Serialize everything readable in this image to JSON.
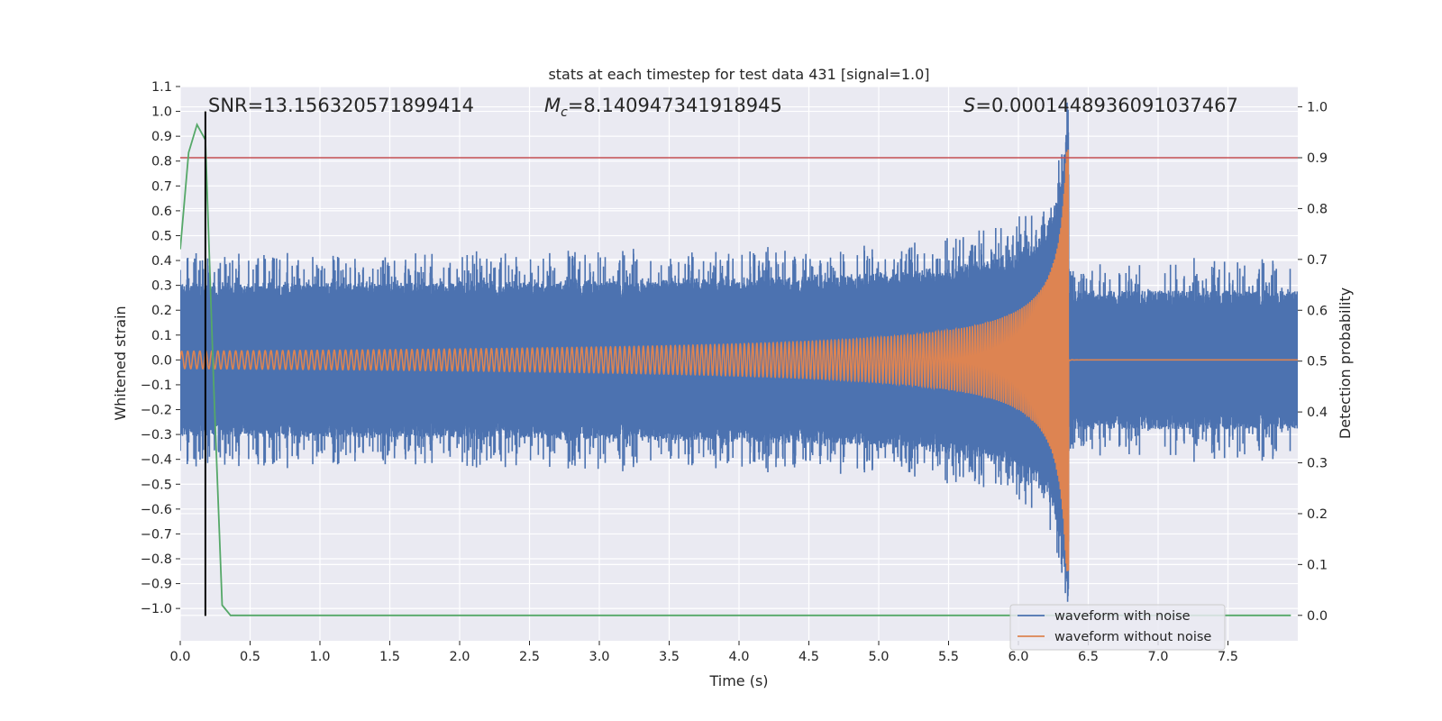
{
  "chart_data": {
    "type": "line",
    "title": "stats at each timestep for test data 431 [signal=1.0]",
    "xlabel": "Time (s)",
    "ylabel": "Whitened strain",
    "ylabel_right": "Detection probability",
    "xlim": [
      0.0,
      8.0
    ],
    "ylim": [
      -1.13,
      1.1
    ],
    "ylim_right": [
      -0.05,
      1.04
    ],
    "x_ticks": [
      0.0,
      0.5,
      1.0,
      1.5,
      2.0,
      2.5,
      3.0,
      3.5,
      4.0,
      4.5,
      5.0,
      5.5,
      6.0,
      6.5,
      7.0,
      7.5
    ],
    "x_tick_labels": [
      "0.0",
      "0.5",
      "1.0",
      "1.5",
      "2.0",
      "2.5",
      "3.0",
      "3.5",
      "4.0",
      "4.5",
      "5.0",
      "5.5",
      "6.0",
      "6.5",
      "7.0",
      "7.5"
    ],
    "y_ticks": [
      1.1,
      1.0,
      0.9,
      0.8,
      0.7,
      0.6,
      0.5,
      0.4,
      0.3,
      0.2,
      0.1,
      0.0,
      -0.1,
      -0.2,
      -0.3,
      -0.4,
      -0.5,
      -0.6,
      -0.7,
      -0.8,
      -0.9,
      -1.0
    ],
    "y_tick_labels": [
      "1.1",
      "1.0",
      "0.9",
      "0.8",
      "0.7",
      "0.6",
      "0.5",
      "0.4",
      "0.3",
      "0.2",
      "0.1",
      "0.0",
      "−0.1",
      "−0.2",
      "−0.3",
      "−0.4",
      "−0.5",
      "−0.6",
      "−0.7",
      "−0.8",
      "−0.9",
      "−1.0"
    ],
    "y_right_ticks": [
      1.0,
      0.9,
      0.8,
      0.7,
      0.6,
      0.5,
      0.4,
      0.3,
      0.2,
      0.1,
      0.0
    ],
    "y_right_tick_labels": [
      "1.0",
      "0.9",
      "0.8",
      "0.7",
      "0.6",
      "0.5",
      "0.4",
      "0.3",
      "0.2",
      "0.1",
      "0.0"
    ],
    "grid": true,
    "legend_position": "lower-right",
    "annotations": {
      "snr": "SNR=13.156320571899414",
      "mc_symbol": "M",
      "mc_sub": "c",
      "mc_value": "=8.140947341918945",
      "s_symbol": "S",
      "s_value": "=0.0001448936091037467"
    },
    "threshold": {
      "value": 0.9,
      "axis": "right",
      "color": "#c44e52"
    },
    "detection_marker": {
      "x": 0.18,
      "y_range": [
        -1.03,
        1.0
      ],
      "color": "#000000"
    },
    "merger_time": 6.36,
    "series": [
      {
        "name": "waveform with noise",
        "color": "#4c72b0",
        "kind": "noisy-strain",
        "noise_amplitude": 0.28,
        "peak_strain": 1.0,
        "t_end": 8.0
      },
      {
        "name": "waveform without noise",
        "color": "#dd8452",
        "kind": "chirp",
        "amplitude_start": 0.035,
        "peak_strain": 0.85,
        "t_end": 8.0
      },
      {
        "name": "",
        "color": "#55a868",
        "axis": "right",
        "kind": "detection-probability",
        "x": [
          0.0,
          0.06,
          0.12,
          0.18,
          0.24,
          0.3,
          0.36,
          0.42,
          1.0,
          2.0,
          3.0,
          4.0,
          5.0,
          6.0,
          7.0,
          7.95
        ],
        "y": [
          0.72,
          0.91,
          0.965,
          0.935,
          0.45,
          0.02,
          0.0,
          0.0,
          0.0,
          0.0,
          0.0,
          0.0,
          0.0,
          0.0,
          0.0,
          0.0
        ]
      }
    ]
  }
}
